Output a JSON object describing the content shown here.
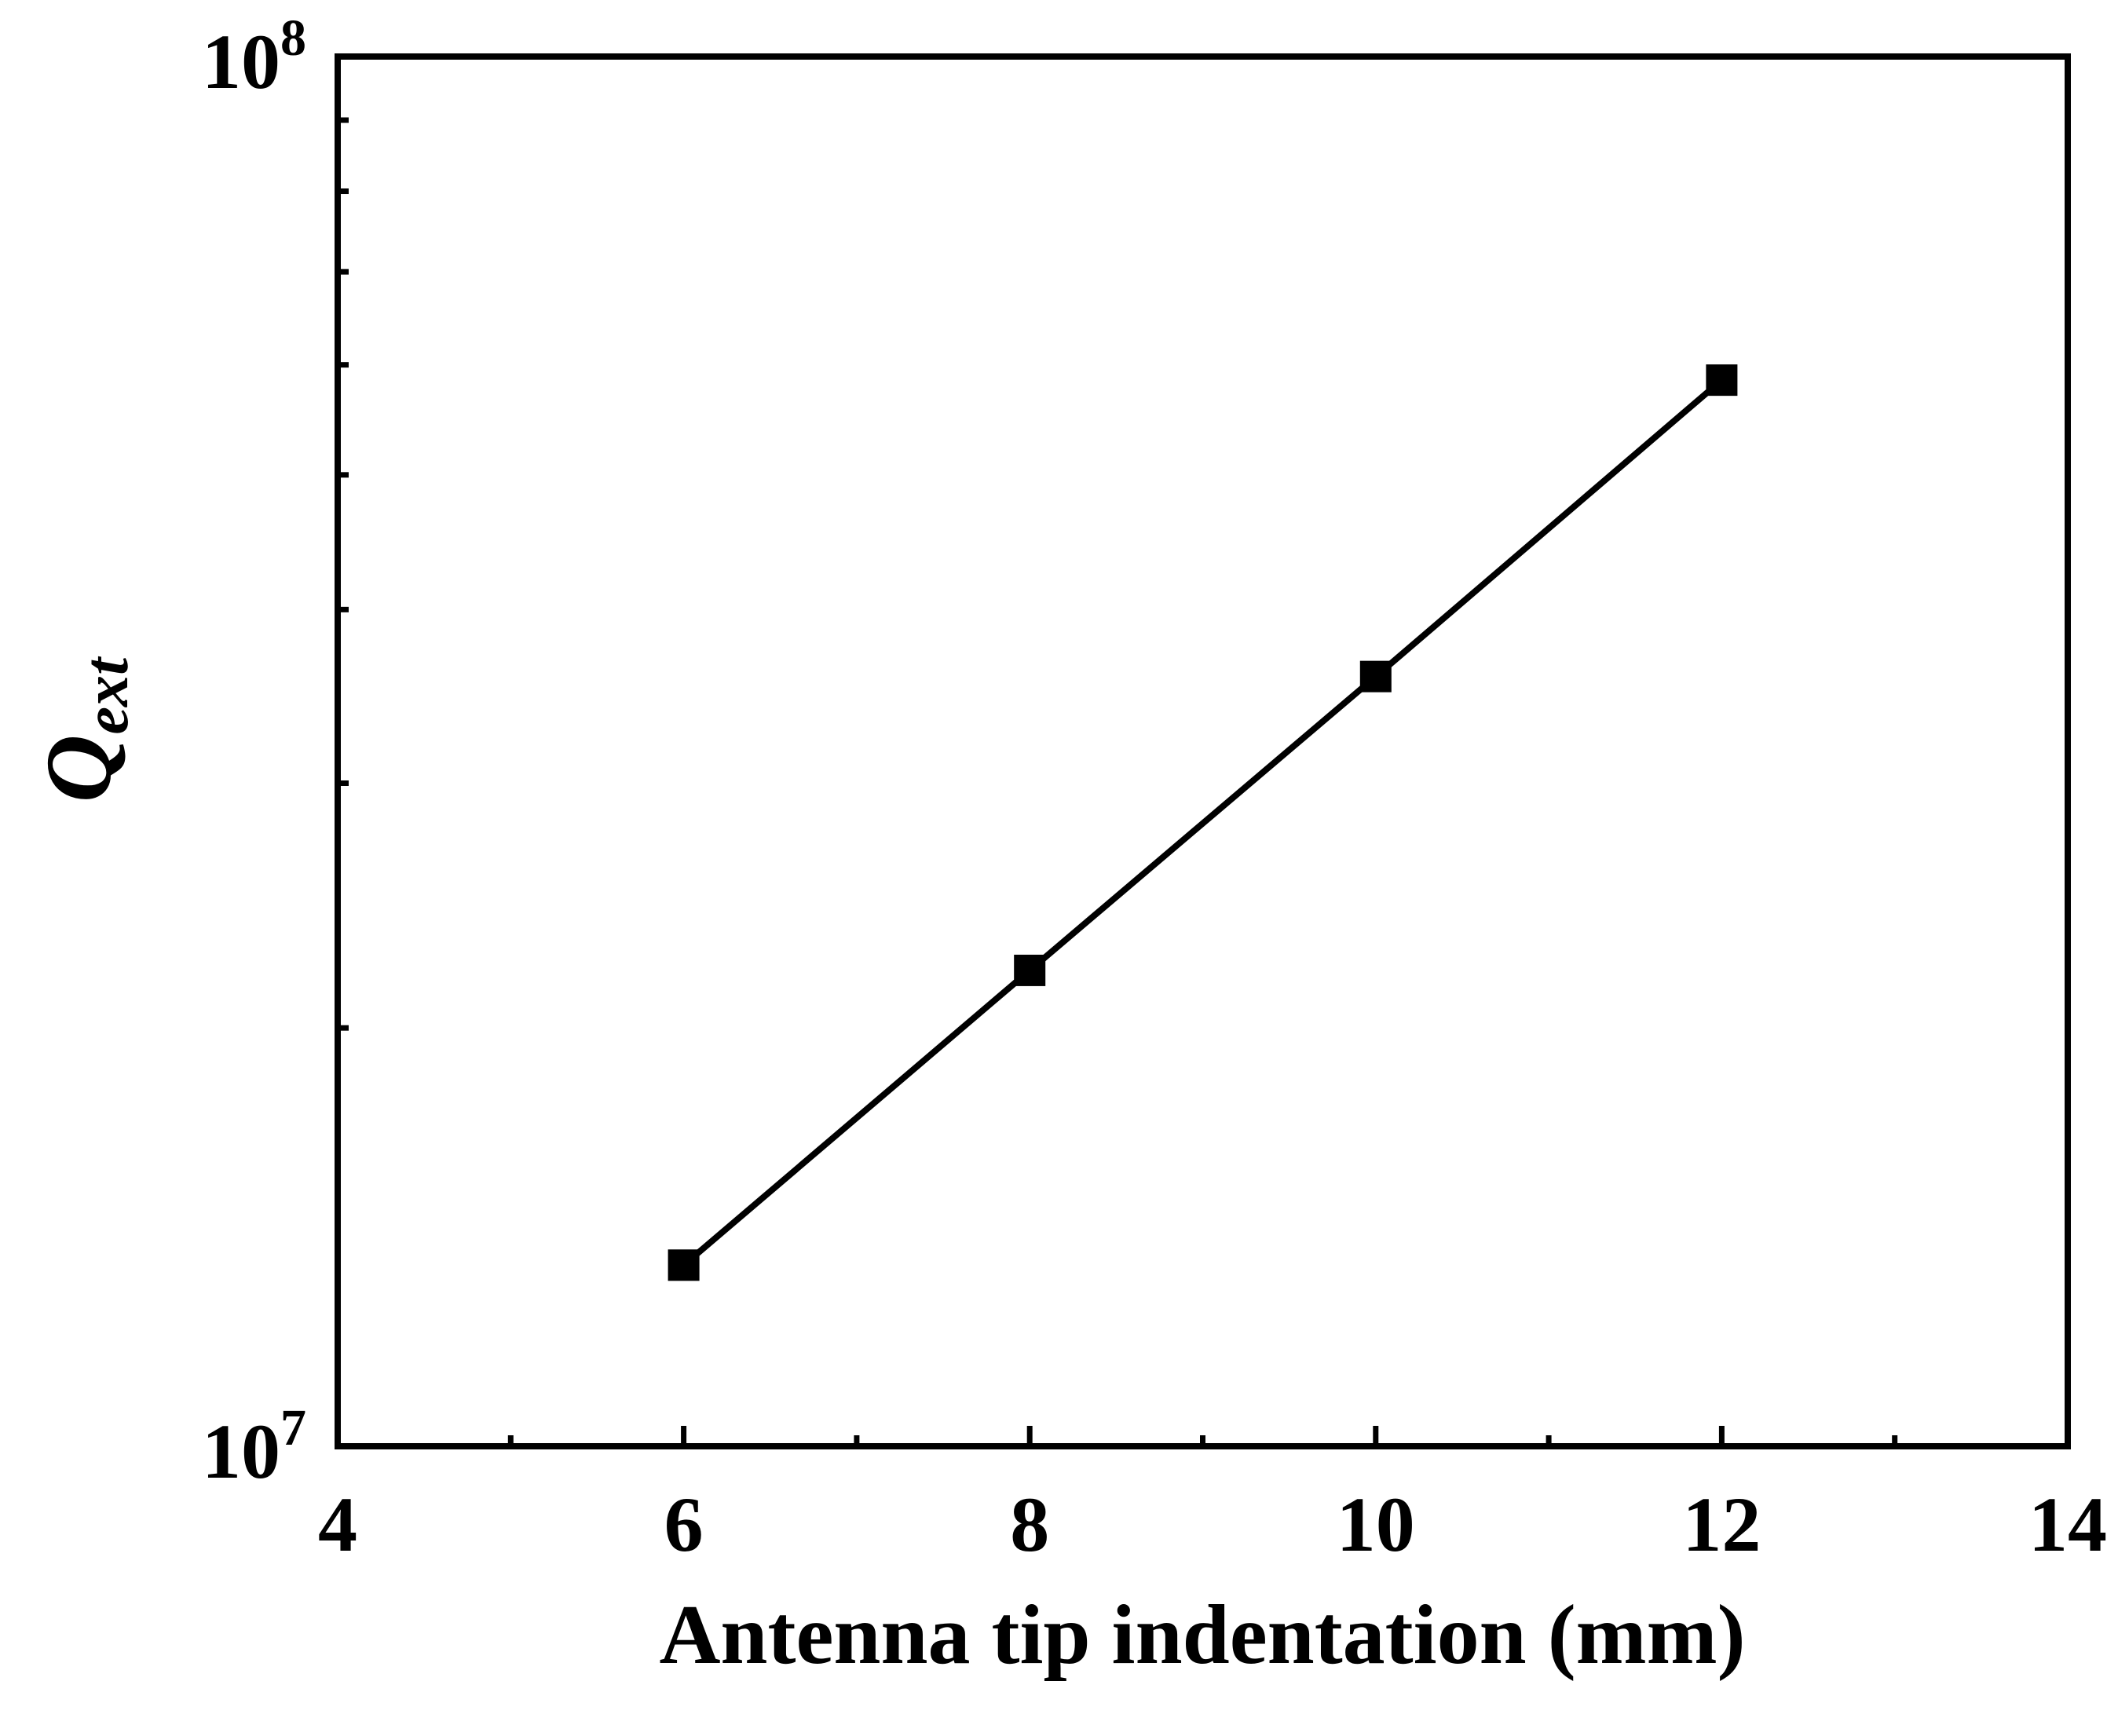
{
  "chart_data": {
    "type": "line",
    "title": "",
    "xlabel": "Antenna tip indentation (mm)",
    "ylabel": {
      "base": "Q",
      "subscript": "ext"
    },
    "x": [
      6,
      8,
      10,
      12
    ],
    "series": [
      {
        "values": [
          13500000,
          22000000,
          35800000,
          58500000
        ],
        "color": "#000000",
        "marker": "square"
      }
    ],
    "xlim": [
      4,
      14
    ],
    "ylim": [
      10000000,
      100000000
    ],
    "yscale": "log",
    "x_ticks": [
      4,
      6,
      8,
      10,
      12,
      14
    ],
    "x_tick_labels": [
      "4",
      "6",
      "8",
      "10",
      "12",
      "14"
    ],
    "x_minor_ticks": [
      5,
      7,
      9,
      11,
      13
    ],
    "y_ticks": [
      {
        "base": "10",
        "exp": "7",
        "value": 10000000
      },
      {
        "base": "10",
        "exp": "8",
        "value": 100000000
      }
    ],
    "y_minor_ticks": [
      20000000,
      30000000,
      40000000,
      50000000,
      60000000,
      70000000,
      80000000,
      90000000
    ],
    "grid": false,
    "legend": "none"
  }
}
